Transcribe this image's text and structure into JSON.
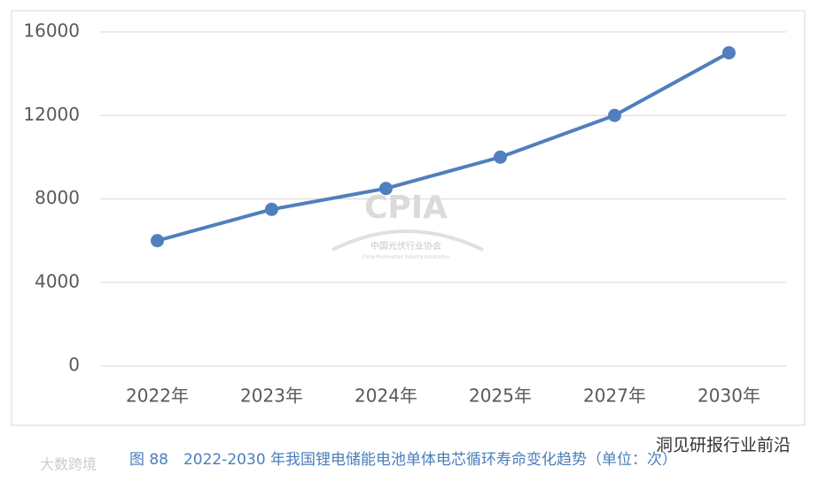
{
  "chart_data": {
    "type": "line",
    "title": "图 88　2022-2030 年我国锂电储能电池单体电芯循环寿命变化趋势（单位：次）",
    "categories": [
      "2022年",
      "2023年",
      "2024年",
      "2025年",
      "2027年",
      "2030年"
    ],
    "values": [
      6000,
      7500,
      8500,
      10000,
      12000,
      15000
    ],
    "color": "#4f7fbd",
    "ylim": [
      0,
      16000
    ],
    "yticks": [
      0,
      4000,
      8000,
      12000,
      16000
    ],
    "grid": true,
    "watermark": {
      "logo": "CPIA",
      "name": "中国光伏行业协会",
      "name_en": "China Photovoltaic Industry Association"
    },
    "source_tags": [
      "洞见研报行业前沿",
      "大数跨境"
    ]
  }
}
